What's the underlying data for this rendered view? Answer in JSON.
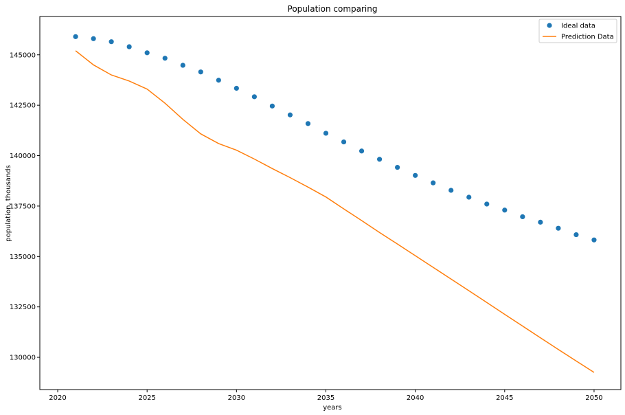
{
  "chart_data": {
    "type": "line",
    "title": "Population comparing",
    "xlabel": "years",
    "ylabel": "population, thousands",
    "xlim": [
      2019.0,
      2051.5
    ],
    "ylim": [
      128400,
      146900
    ],
    "xticks": [
      2020,
      2025,
      2030,
      2035,
      2040,
      2045,
      2050
    ],
    "xtick_labels": [
      "2020",
      "2025",
      "2030",
      "2035",
      "2040",
      "2045",
      "2050"
    ],
    "yticks": [
      130000,
      132500,
      135000,
      137500,
      140000,
      142500,
      145000
    ],
    "ytick_labels": [
      "130000",
      "132500",
      "135000",
      "137500",
      "140000",
      "142500",
      "145000"
    ],
    "grid": false,
    "legend_position": "top-right",
    "x": [
      2021,
      2022,
      2023,
      2024,
      2025,
      2026,
      2027,
      2028,
      2029,
      2030,
      2031,
      2032,
      2033,
      2034,
      2035,
      2036,
      2037,
      2038,
      2039,
      2040,
      2041,
      2042,
      2043,
      2044,
      2045,
      2046,
      2047,
      2048,
      2049,
      2050
    ],
    "series": [
      {
        "name": "Ideal data",
        "style": "scatter",
        "color": "#1f77b4",
        "values": [
          145900,
          145800,
          145650,
          145400,
          145100,
          144830,
          144480,
          144150,
          143740,
          143340,
          142920,
          142460,
          142020,
          141590,
          141110,
          140680,
          140230,
          139820,
          139420,
          139020,
          138650,
          138280,
          137940,
          137600,
          137300,
          136970,
          136700,
          136400,
          136080,
          135820
        ]
      },
      {
        "name": "Prediction Data",
        "style": "line",
        "color": "#ff7f0e",
        "values": [
          145200,
          144500,
          144000,
          143700,
          143300,
          142600,
          141800,
          141080,
          140600,
          140270,
          139830,
          139360,
          138910,
          138440,
          137950,
          137360,
          136780,
          136190,
          135620,
          135040,
          134460,
          133880,
          133300,
          132720,
          132130,
          131550,
          130970,
          130390,
          129820,
          129250
        ]
      }
    ]
  }
}
